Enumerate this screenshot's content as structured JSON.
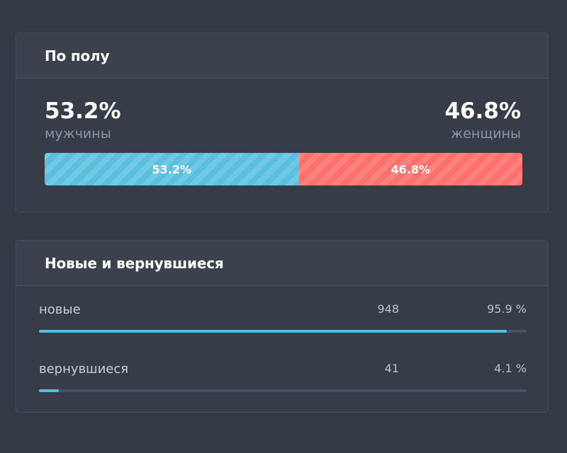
{
  "gender": {
    "title": "По полу",
    "male": {
      "value": "53.2%",
      "label": "мужчины",
      "bar_label": "53.2%",
      "share": 0.532,
      "color": "#5bc0df"
    },
    "female": {
      "value": "46.8%",
      "label": "женщины",
      "bar_label": "46.8%",
      "share": 0.468,
      "color": "#ff6f6c"
    }
  },
  "returning": {
    "title": "Новые и вернувшиеся",
    "rows": [
      {
        "label": "новые",
        "count": "948",
        "percent": "95.9 %",
        "fraction": 0.959
      },
      {
        "label": "вернувшиеся",
        "count": "41",
        "percent": "4.1 %",
        "fraction": 0.041
      }
    ],
    "accent": "#55bde5"
  }
}
